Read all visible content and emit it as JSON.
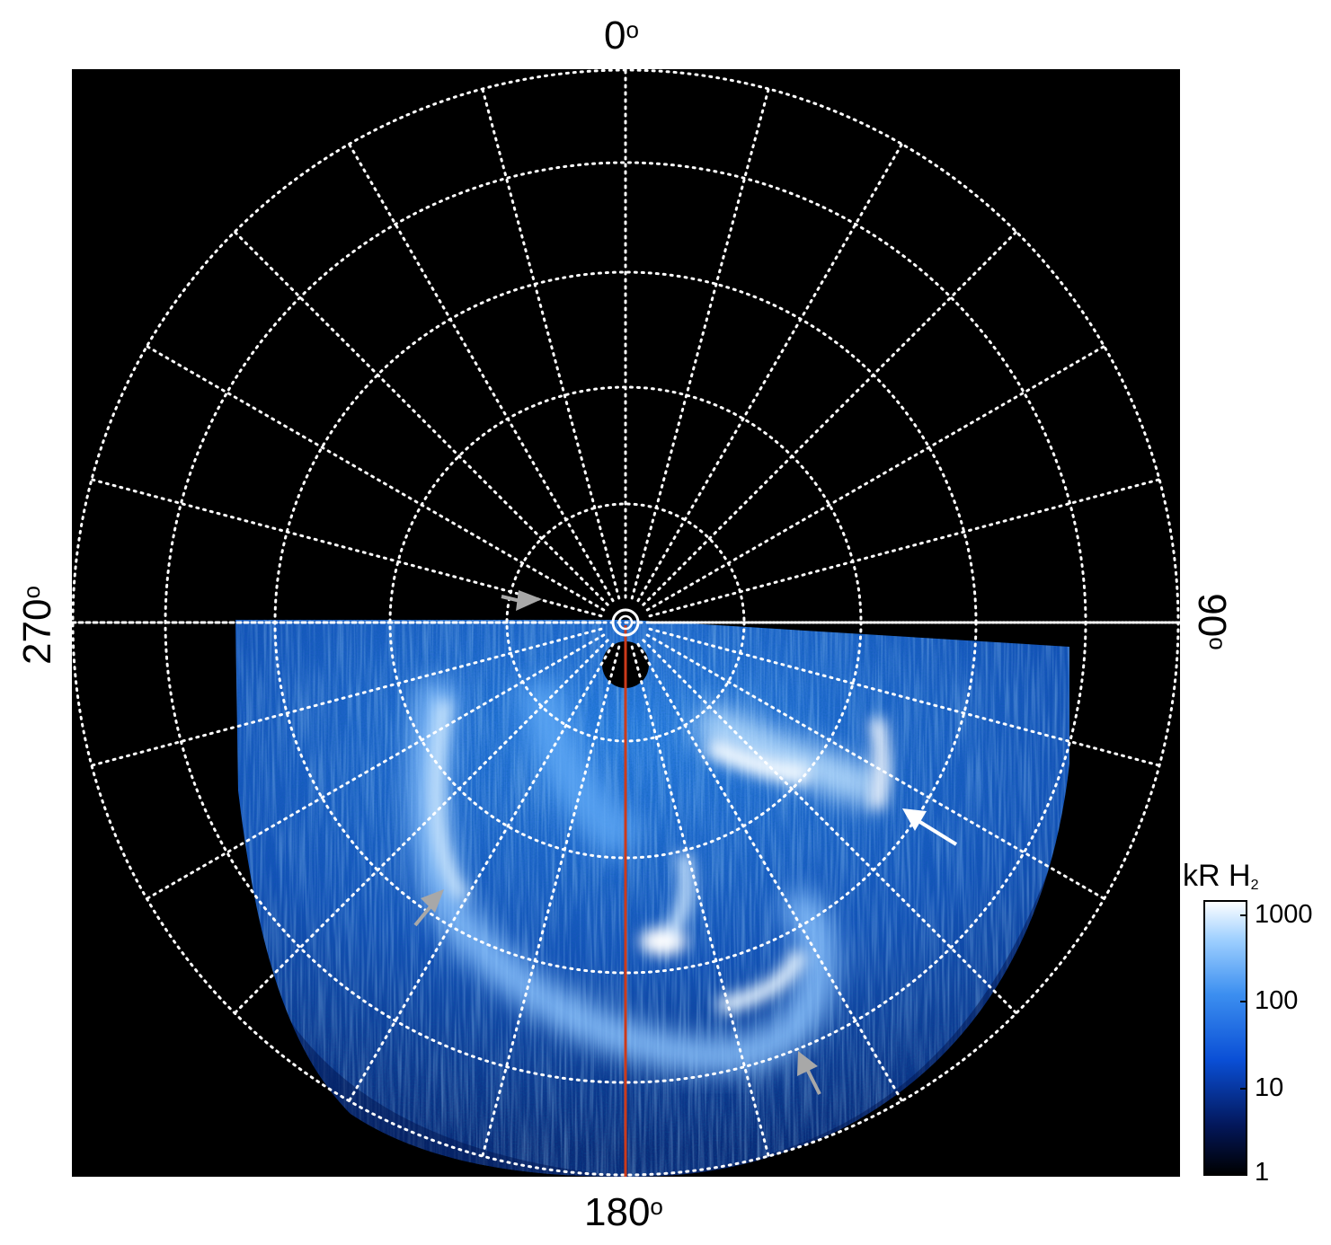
{
  "figure": {
    "axis_labels": {
      "top": "0",
      "bottom": "180",
      "left": "270",
      "right": "90",
      "degree_symbol": "o"
    },
    "colorbar": {
      "title_main": "kR H",
      "title_sub": "2",
      "ticks": [
        "1000",
        "100",
        "10",
        "1"
      ],
      "colors": [
        "#000000",
        "#03175a",
        "#0a4fd6",
        "#3c8ff0",
        "#9fd0ff",
        "#ffffff"
      ]
    },
    "grid_color": "#ffffff",
    "meridian_color": "#cc3a1a",
    "background_color": "#000000",
    "arrows": [
      {
        "color": "#a8a8a8"
      },
      {
        "color": "#a8a8a8"
      },
      {
        "color": "#ffffff"
      },
      {
        "color": "#a8a8a8"
      }
    ]
  }
}
